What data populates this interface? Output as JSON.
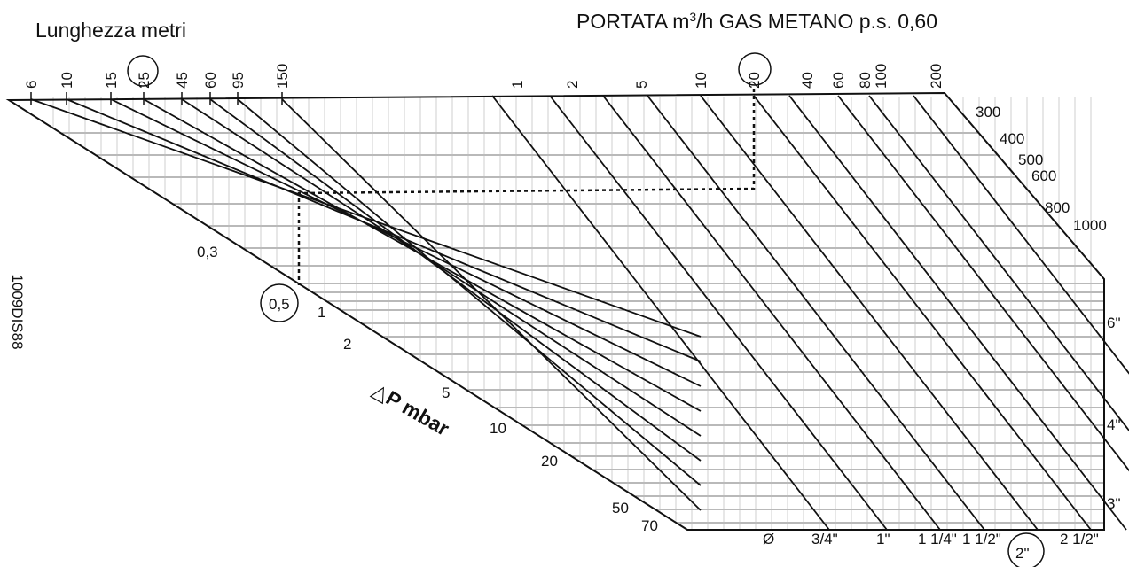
{
  "title_left": "Lunghezza metri",
  "title_right": {
    "main": "PORTATA m",
    "sup": "3",
    "rest": "/h GAS METANO p.s. 0,60"
  },
  "length_labels": [
    "6",
    "10",
    "15",
    "25",
    "45",
    "60",
    "95",
    "150"
  ],
  "flow_labels": [
    "1",
    "2",
    "5",
    "10",
    "20",
    "40",
    "60",
    "80",
    "100",
    "200"
  ],
  "right_labels": [
    "300",
    "400",
    "500",
    "600",
    "800",
    "1000"
  ],
  "dp_labels": [
    "0,3",
    "0,5",
    "1",
    "2",
    "5",
    "10",
    "20",
    "50",
    "70"
  ],
  "axis_label": {
    "delta": "△",
    "text": "P mbar"
  },
  "pipe_labels": [
    "6\"",
    "4\"",
    "3\""
  ],
  "bottom_labels": [
    "Ø",
    "3/4\"",
    "1\"",
    "1 1/4\"",
    "1 1/2\"",
    "2\"",
    "2 1/2\""
  ],
  "code": "1009DIS88"
}
